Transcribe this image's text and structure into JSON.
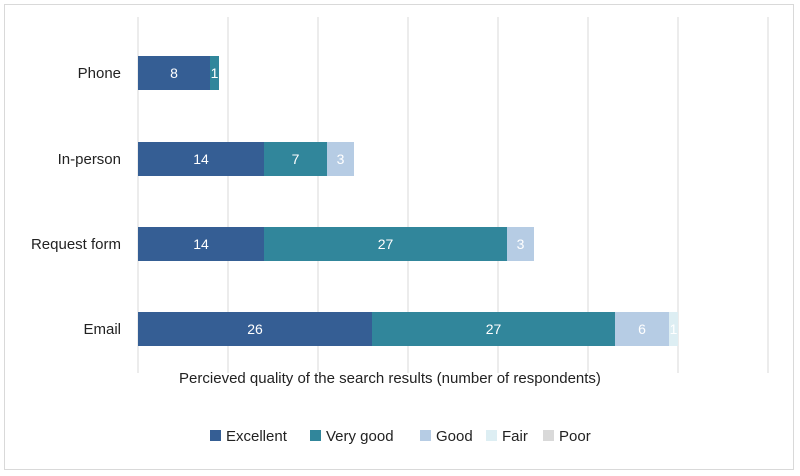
{
  "chart_data": {
    "type": "bar",
    "orientation": "horizontal",
    "stacked": true,
    "categories": [
      "Phone",
      "In-person",
      "Request form",
      "Email"
    ],
    "series": [
      {
        "name": "Excellent",
        "values": [
          8,
          14,
          14,
          26
        ],
        "color": "#355e94"
      },
      {
        "name": "Very good",
        "values": [
          1,
          7,
          27,
          27
        ],
        "color": "#31869b"
      },
      {
        "name": "Good",
        "values": [
          0,
          3,
          3,
          6
        ],
        "color": "#b6cce4"
      },
      {
        "name": "Fair",
        "values": [
          0,
          0,
          0,
          1
        ],
        "color": "#ddeef3"
      },
      {
        "name": "Poor",
        "values": [
          0,
          0,
          0,
          0
        ],
        "color": "#d9d9d9"
      }
    ],
    "xlabel": "Percieved quality of the search results (number of respondents)",
    "xlim": [
      0,
      70
    ],
    "grid": true,
    "legend": "bottom"
  }
}
